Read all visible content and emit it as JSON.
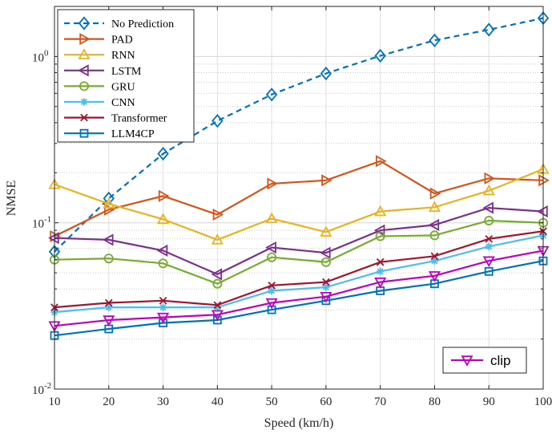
{
  "chart_data": {
    "type": "line",
    "title": "",
    "xlabel": "Speed (km/h)",
    "ylabel": "NMSE",
    "x": [
      10,
      20,
      30,
      40,
      50,
      60,
      70,
      80,
      90,
      100
    ],
    "xlim": [
      10,
      100
    ],
    "ylim": [
      0.01,
      2
    ],
    "yscale": "log",
    "grid": true,
    "legend": "top-left",
    "xticks": [
      "10",
      "20",
      "30",
      "40",
      "50",
      "60",
      "70",
      "80",
      "90",
      "100"
    ],
    "yticks": [
      {
        "base": "10",
        "exp": "-2",
        "value": 0.01
      },
      {
        "base": "10",
        "exp": "-1",
        "value": 0.1
      },
      {
        "base": "10",
        "exp": "0",
        "value": 1
      }
    ],
    "series": [
      {
        "name": "No Prediction",
        "color": "#0072BD",
        "marker": "diamond",
        "dash": true,
        "values": [
          0.067,
          0.14,
          0.26,
          0.41,
          0.59,
          0.79,
          1.01,
          1.25,
          1.45,
          1.7
        ]
      },
      {
        "name": "PAD",
        "color": "#D95319",
        "marker": "triangle-right",
        "dash": false,
        "values": [
          0.083,
          0.12,
          0.145,
          0.112,
          0.172,
          0.18,
          0.235,
          0.15,
          0.185,
          0.18
        ]
      },
      {
        "name": "RNN",
        "color": "#EDB120",
        "marker": "triangle-up",
        "dash": false,
        "values": [
          0.17,
          0.13,
          0.105,
          0.079,
          0.106,
          0.088,
          0.117,
          0.124,
          0.156,
          0.21
        ]
      },
      {
        "name": "LSTM",
        "color": "#7E2F8E",
        "marker": "triangle-left",
        "dash": false,
        "values": [
          0.081,
          0.079,
          0.068,
          0.049,
          0.071,
          0.066,
          0.09,
          0.097,
          0.123,
          0.117
        ]
      },
      {
        "name": "GRU",
        "color": "#77AC30",
        "marker": "circle",
        "dash": false,
        "values": [
          0.06,
          0.061,
          0.057,
          0.043,
          0.062,
          0.058,
          0.083,
          0.084,
          0.103,
          0.1
        ]
      },
      {
        "name": "CNN",
        "color": "#4DBEEE",
        "marker": "asterisk",
        "dash": false,
        "values": [
          0.029,
          0.031,
          0.031,
          0.031,
          0.039,
          0.041,
          0.051,
          0.059,
          0.072,
          0.084
        ]
      },
      {
        "name": "Transformer",
        "color": "#A2142F",
        "marker": "x",
        "dash": false,
        "values": [
          0.031,
          0.033,
          0.034,
          0.032,
          0.042,
          0.044,
          0.058,
          0.063,
          0.08,
          0.089
        ]
      },
      {
        "name": "LLM4CP",
        "color": "#0072BD",
        "marker": "square",
        "dash": false,
        "values": [
          0.021,
          0.023,
          0.025,
          0.026,
          0.03,
          0.034,
          0.039,
          0.043,
          0.051,
          0.059
        ]
      },
      {
        "name": "clip",
        "color": "#C000C0",
        "marker": "triangle-down",
        "dash": false,
        "values": [
          0.024,
          0.026,
          0.027,
          0.028,
          0.033,
          0.036,
          0.044,
          0.048,
          0.059,
          0.068
        ]
      }
    ]
  }
}
